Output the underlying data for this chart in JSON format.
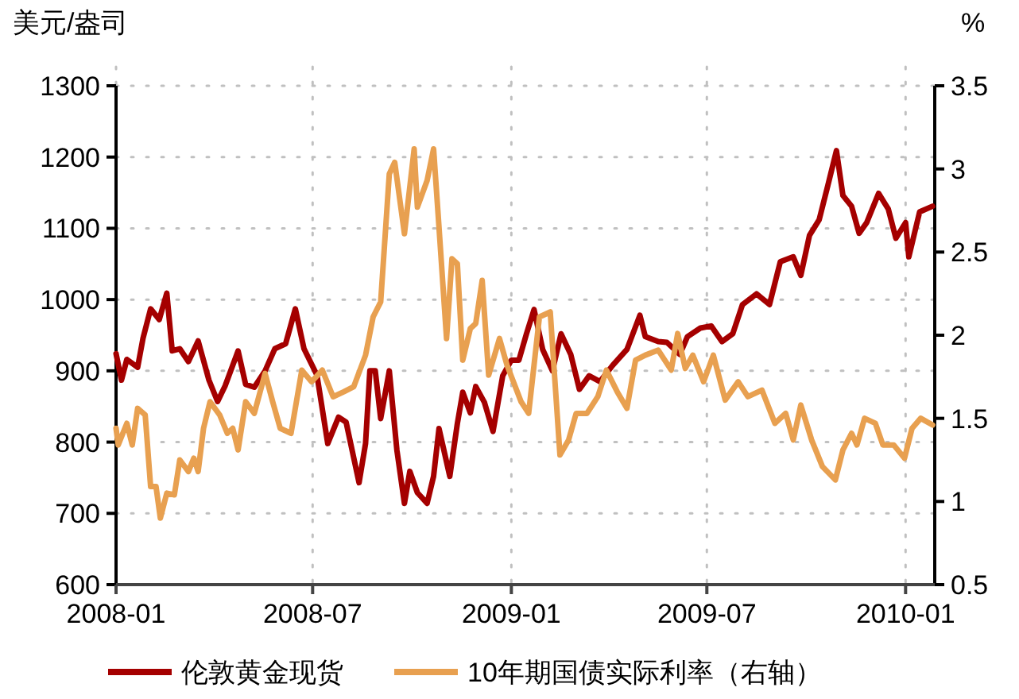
{
  "chart_data": {
    "type": "line",
    "xlabel": null,
    "ylabel": "美元/盎司",
    "y2label": "%",
    "grid": true,
    "legend": "bottom",
    "line_style": "solid",
    "marker": "none",
    "xlim": [
      "2008-01-01",
      "2010-01-28"
    ],
    "xticks": [
      "2008-01",
      "2008-07",
      "2009-01",
      "2009-07",
      "2010-01"
    ],
    "ylim": [
      600,
      1300
    ],
    "yticks": [
      600,
      700,
      800,
      900,
      1000,
      1100,
      1200,
      1300
    ],
    "y2lim": [
      0.5,
      3.5
    ],
    "y2ticks": [
      0.5,
      1,
      1.5,
      2,
      2.5,
      3,
      3.5
    ],
    "series": [
      {
        "name": "伦敦黄金现货",
        "color": "#a50000",
        "x": [
          "2008-01-01",
          "2008-01-06",
          "2008-01-11",
          "2008-01-21",
          "2008-01-26",
          "2008-02-02",
          "2008-02-10",
          "2008-02-17",
          "2008-02-22",
          "2008-02-29",
          "2008-03-08",
          "2008-03-17",
          "2008-03-27",
          "2008-04-04",
          "2008-04-11",
          "2008-04-23",
          "2008-04-30",
          "2008-05-08",
          "2008-05-18",
          "2008-05-27",
          "2008-06-06",
          "2008-06-15",
          "2008-06-23",
          "2008-07-05",
          "2008-07-15",
          "2008-07-25",
          "2008-08-01",
          "2008-08-13",
          "2008-08-19",
          "2008-08-23",
          "2008-08-28",
          "2008-09-02",
          "2008-09-10",
          "2008-09-17",
          "2008-09-24",
          "2008-09-29",
          "2008-10-06",
          "2008-10-15",
          "2008-10-21",
          "2008-10-26",
          "2008-11-05",
          "2008-11-12",
          "2008-11-17",
          "2008-11-24",
          "2008-11-29",
          "2008-12-07",
          "2008-12-15",
          "2008-12-24",
          "2009-01-01",
          "2009-01-08",
          "2009-01-15",
          "2009-01-22",
          "2009-01-30",
          "2009-02-08",
          "2009-02-16",
          "2009-02-25",
          "2009-03-05",
          "2009-03-14",
          "2009-03-24",
          "2009-04-05",
          "2009-04-18",
          "2009-04-30",
          "2009-05-05",
          "2009-05-17",
          "2009-05-25",
          "2009-06-06",
          "2009-06-13",
          "2009-06-25",
          "2009-07-05",
          "2009-07-15",
          "2009-07-25",
          "2009-08-03",
          "2009-08-16",
          "2009-08-28",
          "2009-09-07",
          "2009-09-19",
          "2009-09-26",
          "2009-10-04",
          "2009-10-13",
          "2009-10-21",
          "2009-10-29",
          "2009-11-04",
          "2009-11-12",
          "2009-11-19",
          "2009-11-26",
          "2009-12-07",
          "2009-12-16",
          "2009-12-23",
          "2010-01-01",
          "2010-01-04",
          "2010-01-14",
          "2010-01-26"
        ],
        "values": [
          924,
          887,
          916,
          905,
          946,
          987,
          972,
          1009,
          928,
          931,
          913,
          942,
          887,
          857,
          879,
          928,
          881,
          877,
          900,
          931,
          938,
          987,
          931,
          894,
          798,
          835,
          828,
          743,
          798,
          900,
          900,
          833,
          900,
          789,
          714,
          759,
          729,
          714,
          752,
          819,
          752,
          826,
          870,
          841,
          878,
          856,
          815,
          893,
          915,
          915,
          952,
          986,
          930,
          900,
          952,
          923,
          874,
          893,
          885,
          908,
          930,
          978,
          948,
          941,
          940,
          923,
          948,
          960,
          963,
          941,
          952,
          993,
          1008,
          993,
          1053,
          1060,
          1034,
          1090,
          1112,
          1160,
          1209,
          1146,
          1131,
          1093,
          1108,
          1149,
          1127,
          1086,
          1108,
          1060,
          1123,
          1131
        ]
      },
      {
        "name": "10年期国债实际利率（右轴）",
        "color": "#e8a050",
        "axis": "y2",
        "x": [
          "2008-01-01",
          "2008-01-03",
          "2008-01-11",
          "2008-01-16",
          "2008-01-21",
          "2008-01-28",
          "2008-02-02",
          "2008-02-07",
          "2008-02-11",
          "2008-02-17",
          "2008-02-24",
          "2008-02-29",
          "2008-03-08",
          "2008-03-13",
          "2008-03-17",
          "2008-03-22",
          "2008-03-28",
          "2008-04-06",
          "2008-04-13",
          "2008-04-18",
          "2008-04-23",
          "2008-04-30",
          "2008-05-08",
          "2008-05-18",
          "2008-05-25",
          "2008-06-01",
          "2008-06-11",
          "2008-06-21",
          "2008-06-30",
          "2008-07-10",
          "2008-07-20",
          "2008-07-30",
          "2008-08-08",
          "2008-08-19",
          "2008-08-26",
          "2008-09-02",
          "2008-09-10",
          "2008-09-15",
          "2008-09-24",
          "2008-10-03",
          "2008-10-06",
          "2008-10-15",
          "2008-10-21",
          "2008-10-26",
          "2008-11-02",
          "2008-11-07",
          "2008-11-12",
          "2008-11-17",
          "2008-11-24",
          "2008-11-29",
          "2008-12-05",
          "2008-12-11",
          "2008-12-21",
          "2008-12-28",
          "2009-01-10",
          "2009-01-17",
          "2009-01-27",
          "2009-02-06",
          "2009-02-15",
          "2009-02-23",
          "2009-03-02",
          "2009-03-12",
          "2009-03-22",
          "2009-03-30",
          "2009-04-09",
          "2009-04-18",
          "2009-04-26",
          "2009-05-05",
          "2009-05-17",
          "2009-05-29",
          "2009-06-04",
          "2009-06-11",
          "2009-06-18",
          "2009-06-28",
          "2009-07-07",
          "2009-07-18",
          "2009-07-30",
          "2009-08-08",
          "2009-08-21",
          "2009-09-02",
          "2009-09-12",
          "2009-09-19",
          "2009-09-26",
          "2009-10-06",
          "2009-10-16",
          "2009-10-28",
          "2009-11-04",
          "2009-11-12",
          "2009-11-17",
          "2009-11-24",
          "2009-12-04",
          "2009-12-11",
          "2009-12-21",
          "2009-12-31",
          "2010-01-07",
          "2010-01-15",
          "2010-01-26"
        ],
        "values": [
          1.44,
          1.34,
          1.47,
          1.34,
          1.56,
          1.52,
          1.09,
          1.09,
          0.9,
          1.05,
          1.04,
          1.25,
          1.18,
          1.26,
          1.18,
          1.44,
          1.6,
          1.52,
          1.41,
          1.44,
          1.31,
          1.6,
          1.53,
          1.77,
          1.6,
          1.44,
          1.41,
          1.79,
          1.72,
          1.79,
          1.63,
          1.66,
          1.69,
          1.88,
          2.11,
          2.2,
          2.97,
          3.04,
          2.61,
          3.12,
          2.77,
          2.93,
          3.12,
          2.65,
          1.98,
          2.46,
          2.43,
          1.85,
          2.04,
          2.07,
          2.33,
          1.76,
          1.98,
          1.82,
          1.6,
          1.53,
          2.11,
          2.14,
          1.28,
          1.37,
          1.53,
          1.53,
          1.63,
          1.79,
          1.66,
          1.56,
          1.85,
          1.88,
          1.91,
          1.79,
          2.01,
          1.8,
          1.88,
          1.72,
          1.88,
          1.61,
          1.72,
          1.63,
          1.67,
          1.47,
          1.53,
          1.37,
          1.58,
          1.37,
          1.21,
          1.13,
          1.31,
          1.41,
          1.34,
          1.5,
          1.47,
          1.34,
          1.34,
          1.26,
          1.44,
          1.5,
          1.46
        ]
      }
    ]
  }
}
